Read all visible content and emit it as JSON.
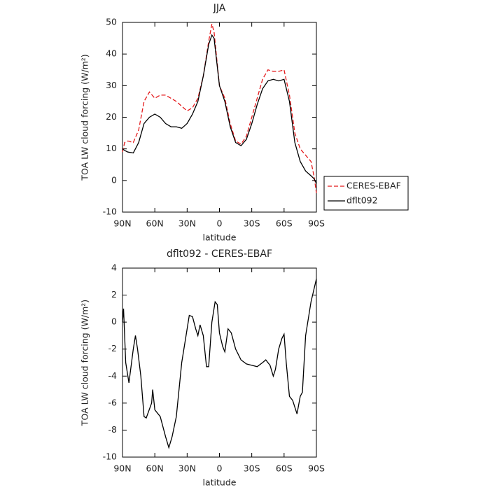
{
  "chart_data": [
    {
      "type": "line",
      "title": "JJA",
      "xlabel": "latitude",
      "ylabel": "TOA LW cloud forcing (W/m²)",
      "x": [
        90,
        88,
        85,
        80,
        75,
        70,
        65,
        60,
        55,
        50,
        45,
        40,
        35,
        30,
        25,
        20,
        15,
        10,
        7,
        5,
        0,
        -5,
        -10,
        -15,
        -20,
        -25,
        -30,
        -35,
        -40,
        -45,
        -50,
        -55,
        -60,
        -65,
        -70,
        -75,
        -80,
        -85,
        -88,
        -90
      ],
      "series": [
        {
          "name": "CERES-EBAF",
          "color": "#e41a1c",
          "dash": "dashed",
          "values": [
            9,
            12,
            12.5,
            12,
            16,
            25,
            28,
            26,
            27,
            27,
            26,
            25,
            23.5,
            22,
            23,
            26,
            33,
            44,
            49.5,
            47,
            30,
            26,
            18,
            12.5,
            11.5,
            14,
            20,
            26,
            32,
            35,
            34.5,
            34.5,
            35,
            27,
            15,
            10,
            8,
            6,
            1,
            -4
          ]
        },
        {
          "name": "dflt092",
          "color": "#000000",
          "dash": "solid",
          "values": [
            10,
            9.5,
            9,
            8.7,
            12,
            18,
            20,
            21,
            20,
            18,
            17,
            17,
            16.5,
            18,
            21,
            25,
            33,
            43,
            46,
            45,
            30,
            25,
            17,
            12,
            11,
            13,
            18,
            24,
            29,
            31.5,
            32,
            31.5,
            32,
            25,
            12,
            6,
            3,
            1.5,
            0.5,
            -1
          ]
        }
      ],
      "xlim": [
        90,
        -90
      ],
      "xticks": [
        {
          "value": 90,
          "label": "90N"
        },
        {
          "value": 60,
          "label": "60N"
        },
        {
          "value": 30,
          "label": "30N"
        },
        0,
        {
          "value": -30,
          "label": "30S"
        },
        {
          "value": -60,
          "label": "60S"
        },
        {
          "value": -90,
          "label": "90S"
        }
      ],
      "ylim": [
        -10,
        50
      ],
      "yticks": [
        -10,
        0,
        10,
        20,
        30,
        40,
        50
      ],
      "legend": "right"
    },
    {
      "type": "line",
      "title": "dflt092 - CERES-EBAF",
      "xlabel": "latitude",
      "ylabel": "TOA LW cloud forcing (W/m²)",
      "x": [
        90,
        89,
        87,
        84,
        80,
        78,
        76,
        73,
        70,
        68,
        63,
        62,
        60,
        55,
        50,
        47,
        44,
        40,
        35,
        31,
        28,
        25,
        22,
        20,
        18,
        15,
        12,
        10,
        7,
        4,
        2,
        0,
        -3,
        -5,
        -8,
        -11,
        -15,
        -20,
        -25,
        -30,
        -35,
        -40,
        -43,
        -47,
        -50,
        -52,
        -55,
        -58,
        -60,
        -62,
        -65,
        -68,
        -72,
        -75,
        -77,
        -80,
        -85,
        -90
      ],
      "values": [
        0,
        1,
        -3,
        -4.5,
        -2,
        -1,
        -2,
        -4,
        -7,
        -7.1,
        -6,
        -5,
        -6.5,
        -7,
        -8.5,
        -9.3,
        -8.5,
        -7,
        -3,
        -1,
        0.5,
        0.4,
        -0.5,
        -1,
        -0.2,
        -1,
        -3.3,
        -3.3,
        0,
        1.5,
        1.3,
        -0.8,
        -1.8,
        -2.2,
        -0.5,
        -0.8,
        -2,
        -2.8,
        -3.1,
        -3.2,
        -3.3,
        -3,
        -2.8,
        -3.2,
        -4,
        -3.5,
        -2,
        -1.2,
        -0.9,
        -3,
        -5.5,
        -5.8,
        -6.8,
        -5.5,
        -5.2,
        -1,
        1.5,
        3.2
      ],
      "color": "#000000",
      "xlim": [
        90,
        -90
      ],
      "xticks": [
        {
          "value": 90,
          "label": "90N"
        },
        {
          "value": 60,
          "label": "60N"
        },
        {
          "value": 30,
          "label": "30N"
        },
        0,
        {
          "value": -30,
          "label": "30S"
        },
        {
          "value": -60,
          "label": "60S"
        },
        {
          "value": -90,
          "label": "90S"
        }
      ],
      "ylim": [
        -10,
        4
      ],
      "yticks": [
        -10,
        -8,
        -6,
        -4,
        -2,
        0,
        2,
        4
      ]
    }
  ]
}
